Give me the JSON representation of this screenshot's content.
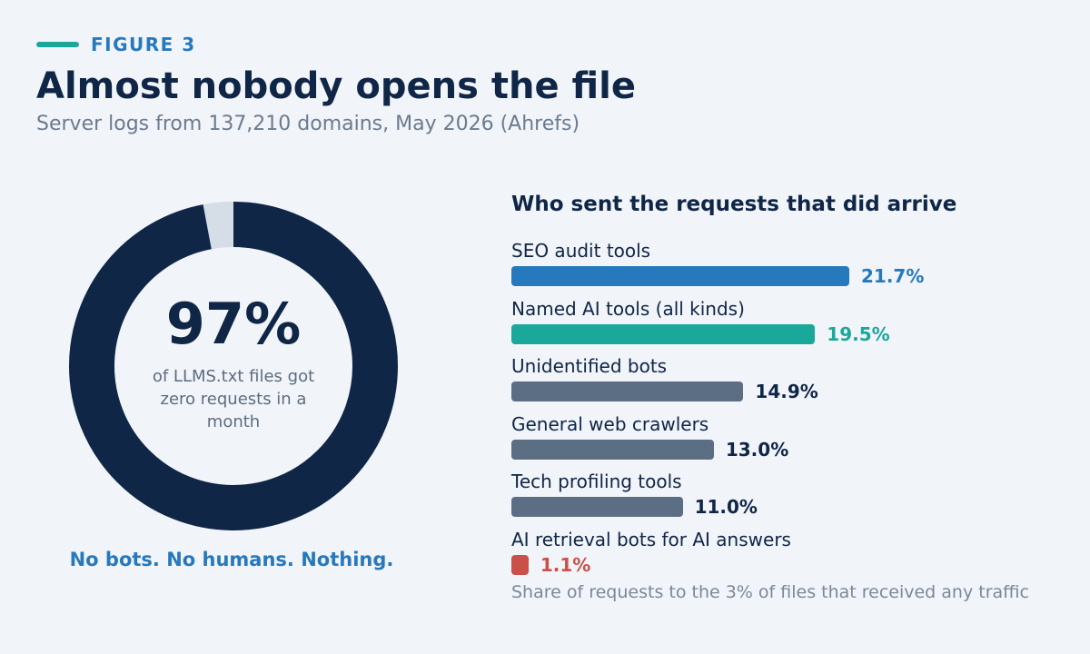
{
  "figure_label": "FIGURE 3",
  "title": "Almost nobody opens the file",
  "subtitle": "Server logs from 137,210 domains, May 2026 (Ahrefs)",
  "colors": {
    "background": "#f1f4f8",
    "navy": "#0f2647",
    "accent_blue": "#2779bd",
    "teal": "#1aa89b",
    "slate": "#5b6e83",
    "red": "#c9514a",
    "donut_remainder": "#d5dde6"
  },
  "donut": {
    "big_value": "97%",
    "caption": "of LLMS.txt files got zero requests in a month",
    "tagline": "No bots. No humans. Nothing."
  },
  "bars_panel": {
    "title": "Who sent the requests that did arrive",
    "footnote": "Share of requests to the 3% of files that received any traffic"
  },
  "chart_data": [
    {
      "type": "pie",
      "slices": [
        {
          "label": "zero requests",
          "value": 97,
          "color": "#0f2647"
        },
        {
          "label": "received any traffic",
          "value": 3,
          "color": "#d5dde6"
        }
      ]
    },
    {
      "type": "bar",
      "title": "Who sent the requests that did arrive",
      "categories": [
        "SEO audit tools",
        "Named AI tools (all kinds)",
        "Unidentified bots",
        "General web crawlers",
        "Tech profiling tools",
        "AI retrieval bots for AI answers"
      ],
      "values": [
        21.7,
        19.5,
        14.9,
        13.0,
        11.0,
        1.1
      ],
      "value_labels": [
        "21.7%",
        "19.5%",
        "14.9%",
        "13.0%",
        "11.0%",
        "1.1%"
      ],
      "bar_colors": [
        "#2779bd",
        "#1aa89b",
        "#5b6e83",
        "#5b6e83",
        "#5b6e83",
        "#c9514a"
      ],
      "label_colors": [
        "#2779bd",
        "#1aa89b",
        "#0f2647",
        "#0f2647",
        "#0f2647",
        "#c9514a"
      ],
      "xlim": [
        0,
        21.7
      ]
    }
  ]
}
